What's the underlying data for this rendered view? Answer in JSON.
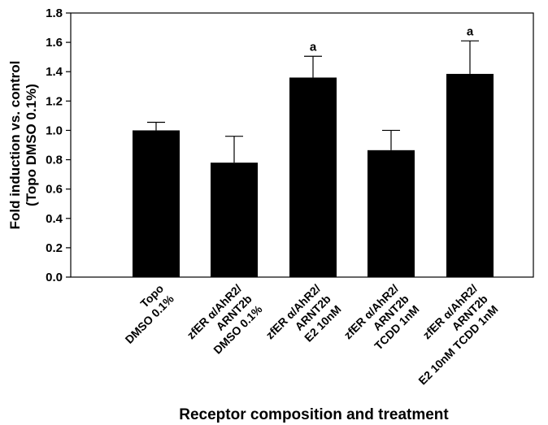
{
  "chart_data": {
    "type": "bar",
    "categories": [
      [
        "Topo",
        "DMSO 0.1%"
      ],
      [
        "zfER α/AhR2/",
        "ARNT2b",
        "DMSO 0.1%"
      ],
      [
        "zfER α/AhR2/",
        "ARNT2b",
        "E2 10nM"
      ],
      [
        "zfER α/AhR2/",
        "ARNT2b",
        "TCDD 1nM"
      ],
      [
        "zfER α/AhR2/",
        "ARNT2b",
        "E2 10nM TCDD 1nM"
      ]
    ],
    "values": [
      1.0,
      0.78,
      1.36,
      0.865,
      1.385
    ],
    "errors": [
      0.055,
      0.18,
      0.145,
      0.135,
      0.225
    ],
    "annotations": [
      "",
      "",
      "a",
      "",
      "a"
    ],
    "ylabel_lines": [
      "Fold induction vs. control",
      "(Topo DMSO 0.1%)"
    ],
    "xlabel": "Receptor composition and treatment",
    "ylim": [
      0,
      1.8
    ],
    "yticks": [
      "0.0",
      "0.2",
      "0.4",
      "0.6",
      "0.8",
      "1.0",
      "1.2",
      "1.4",
      "1.6",
      "1.8"
    ],
    "bar_color": "#000000",
    "grid": false
  }
}
